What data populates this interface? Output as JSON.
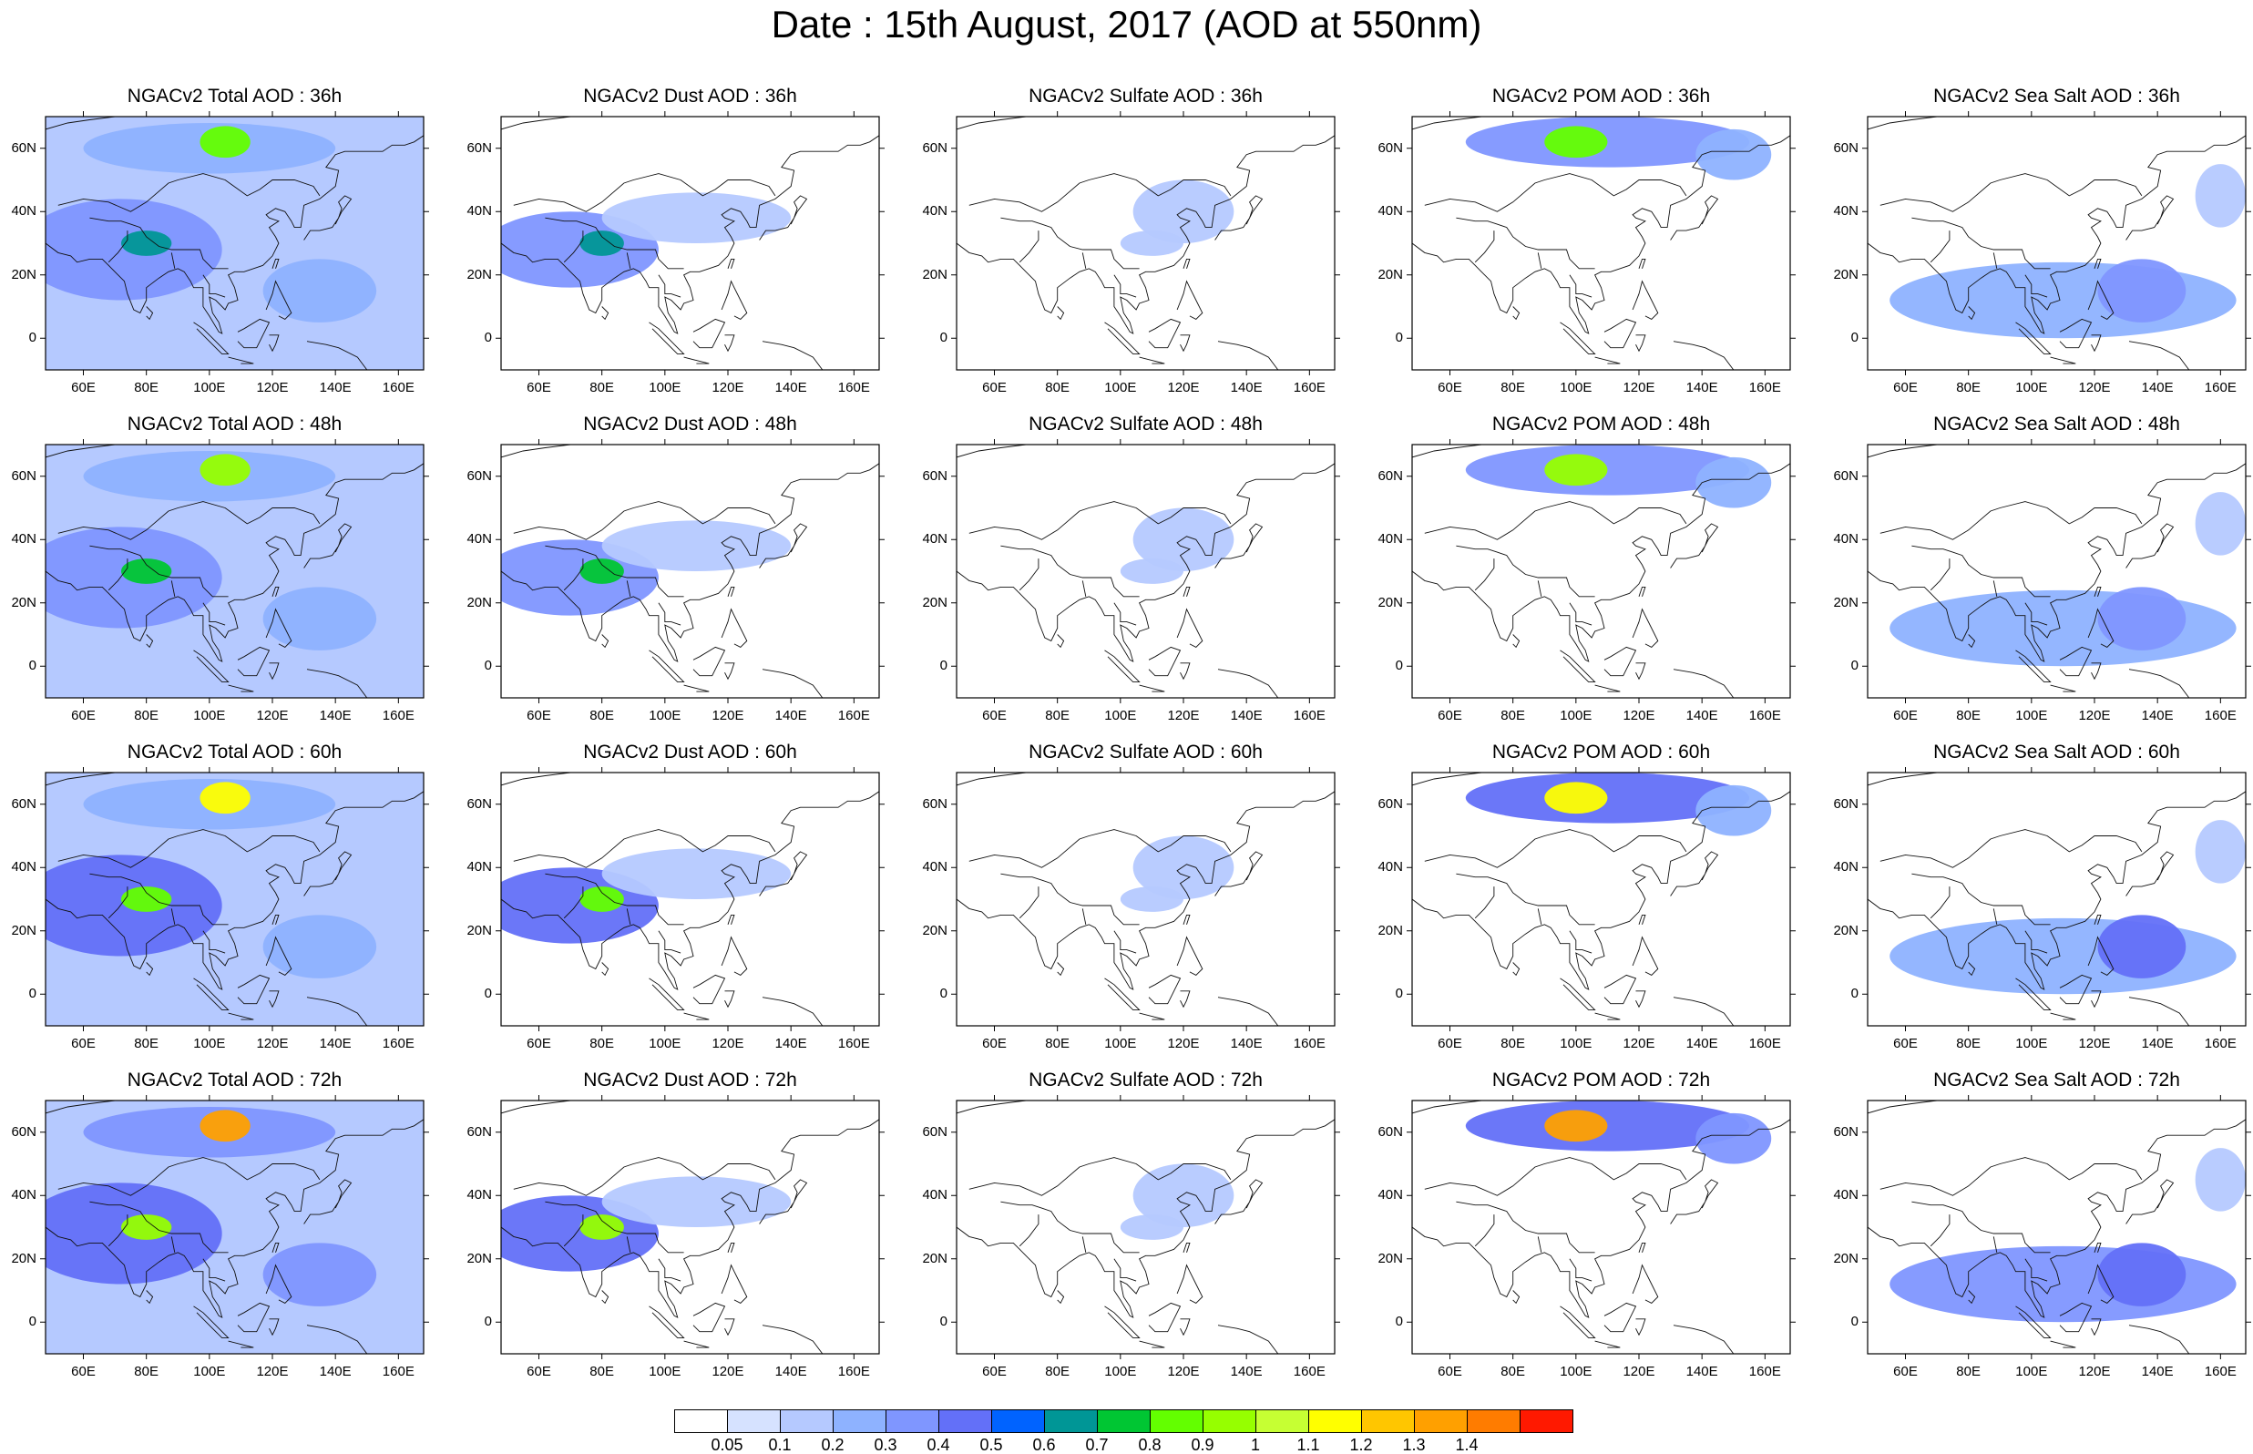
{
  "title": "Date : 15th August, 2017 (AOD at 550nm)",
  "lat_ticks": [
    "60N",
    "40N",
    "20N",
    "0"
  ],
  "lat_values": [
    60,
    40,
    20,
    0
  ],
  "lon_ticks": [
    "60E",
    "80E",
    "100E",
    "120E",
    "140E",
    "160E"
  ],
  "lon_values": [
    60,
    80,
    100,
    120,
    140,
    160
  ],
  "map_extent": {
    "lon": [
      48,
      168
    ],
    "lat": [
      -10,
      70
    ]
  },
  "colorbar": {
    "labels": [
      "0.05",
      "0.1",
      "0.2",
      "0.3",
      "0.4",
      "0.5",
      "0.6",
      "0.7",
      "0.8",
      "0.9",
      "1",
      "1.1",
      "1.2",
      "1.3",
      "1.4"
    ],
    "colors": [
      "#ffffff",
      "#d6e2ff",
      "#b5c9ff",
      "#8eb2ff",
      "#7f96ff",
      "#6370f8",
      "#0063ff",
      "#009696",
      "#00c633",
      "#63ff00",
      "#96ff00",
      "#c6ff33",
      "#ffff00",
      "#ffc600",
      "#ffa000",
      "#ff7c00",
      "#ff1900"
    ]
  },
  "rows": [
    {
      "panels": [
        "NGACv2 Total AOD : 36h",
        "NGACv2 Dust AOD : 36h",
        "NGACv2 Sulfate AOD : 36h",
        "NGACv2 POM AOD : 36h",
        "NGACv2 Sea Salt AOD : 36h"
      ]
    },
    {
      "panels": [
        "NGACv2 Total AOD : 48h",
        "NGACv2 Dust AOD : 48h",
        "NGACv2 Sulfate AOD : 48h",
        "NGACv2 POM AOD : 48h",
        "NGACv2 Sea Salt AOD : 48h"
      ]
    },
    {
      "panels": [
        "NGACv2 Total AOD : 60h",
        "NGACv2 Dust AOD : 60h",
        "NGACv2 Sulfate AOD : 60h",
        "NGACv2 POM AOD : 60h",
        "NGACv2 Sea Salt AOD : 60h"
      ]
    },
    {
      "panels": [
        "NGACv2 Total AOD : 72h",
        "NGACv2 Dust AOD : 72h",
        "NGACv2 Sulfate AOD : 72h",
        "NGACv2 POM AOD : 72h",
        "NGACv2 Sea Salt AOD : 72h"
      ]
    }
  ],
  "species_fields": {
    "Total": [
      {
        "lon": 72,
        "lat": 28,
        "rlon": 32,
        "rlat": 16,
        "aod": 0.3
      },
      {
        "lon": 100,
        "lat": 60,
        "rlon": 40,
        "rlat": 8,
        "aod": 0.2
      },
      {
        "lon": 135,
        "lat": 15,
        "rlon": 18,
        "rlat": 10,
        "aod": 0.2
      },
      {
        "lon": 80,
        "lat": 30,
        "rlon": 8,
        "rlat": 4,
        "aod": 0.6
      },
      {
        "lon": 105,
        "lat": 62,
        "rlon": 8,
        "rlat": 5,
        "aod": 1.1
      }
    ],
    "Dust": [
      {
        "lon": 70,
        "lat": 28,
        "rlon": 28,
        "rlat": 12,
        "aod": 0.3
      },
      {
        "lon": 80,
        "lat": 30,
        "rlon": 7,
        "rlat": 4,
        "aod": 0.6
      },
      {
        "lon": 110,
        "lat": 38,
        "rlon": 30,
        "rlat": 8,
        "aod": 0.1
      }
    ],
    "Sulfate": [
      {
        "lon": 120,
        "lat": 40,
        "rlon": 16,
        "rlat": 10,
        "aod": 0.1
      },
      {
        "lon": 110,
        "lat": 30,
        "rlon": 10,
        "rlat": 4,
        "aod": 0.1
      }
    ],
    "POM": [
      {
        "lon": 110,
        "lat": 62,
        "rlon": 45,
        "rlat": 8,
        "aod": 0.3
      },
      {
        "lon": 100,
        "lat": 62,
        "rlon": 10,
        "rlat": 5,
        "aod": 1.1
      },
      {
        "lon": 150,
        "lat": 58,
        "rlon": 12,
        "rlat": 8,
        "aod": 0.2
      }
    ],
    "Sea Salt": [
      {
        "lon": 110,
        "lat": 12,
        "rlon": 55,
        "rlat": 12,
        "aod": 0.2
      },
      {
        "lon": 135,
        "lat": 15,
        "rlon": 14,
        "rlat": 10,
        "aod": 0.3
      },
      {
        "lon": 160,
        "lat": 45,
        "rlon": 8,
        "rlat": 10,
        "aod": 0.1
      }
    ]
  }
}
